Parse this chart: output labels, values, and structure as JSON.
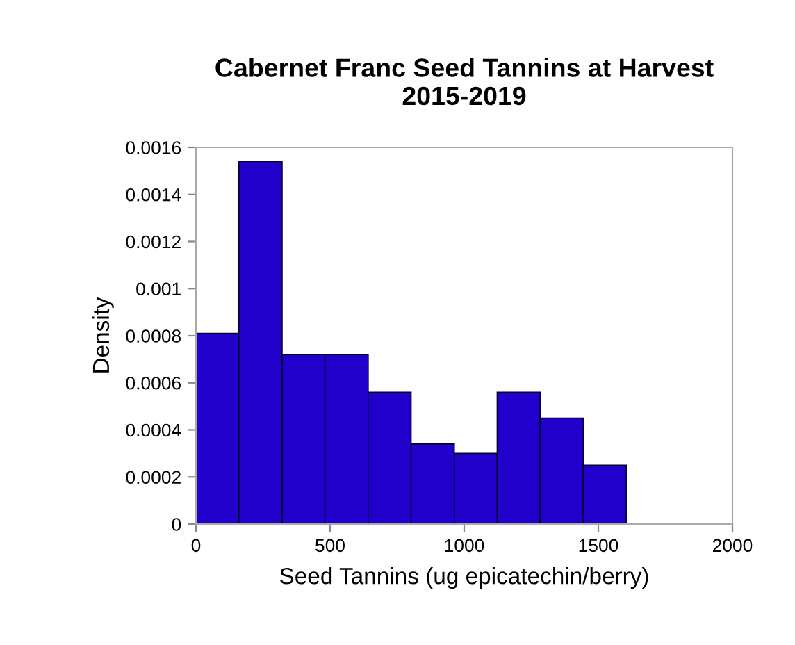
{
  "chart_data": {
    "type": "histogram",
    "title": "Cabernet Franc Seed Tannins at Harvest\n2015-2019",
    "xlabel": "Seed Tannins (ug epicatechin/berry)",
    "ylabel": "Density",
    "bins": [
      0,
      160,
      321,
      481,
      642,
      802,
      963,
      1123,
      1283,
      1444,
      1604
    ],
    "values": [
      0.00081,
      0.00154,
      0.00072,
      0.00072,
      0.00056,
      0.00034,
      0.0003,
      0.00056,
      0.00045,
      0.00025
    ],
    "color": "#2200cc",
    "xlim": [
      0,
      2000
    ],
    "xticks": [
      0,
      500,
      1000,
      1500,
      2000
    ],
    "ylim": [
      0,
      0.0016
    ],
    "yticks": [
      0,
      0.0002,
      0.0004,
      0.0006,
      0.0008,
      0.001,
      0.0012,
      0.0014,
      0.0016
    ],
    "grid": false
  }
}
